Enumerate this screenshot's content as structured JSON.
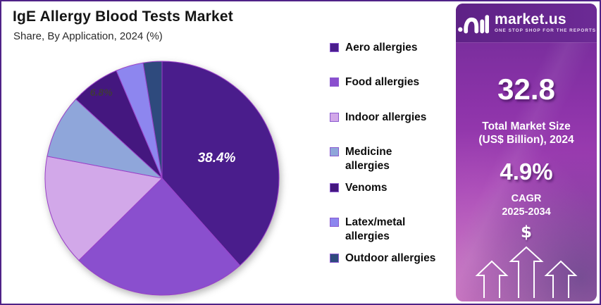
{
  "frame": {
    "border_color": "#4f2387",
    "background": "#ffffff"
  },
  "header": {
    "title": "IgE Allergy Blood Tests Market",
    "subtitle": "Share, By Application, 2024 (%)"
  },
  "chart_data": {
    "type": "pie",
    "title": "IgE Allergy Blood Tests Market",
    "subtitle": "Share, By Application, 2024 (%)",
    "unit": "%",
    "start_angle_clockwise_from_top_deg": 0,
    "stroke_color": "#9a41c8",
    "legend_position": "right",
    "slices": [
      {
        "label": "Aero allergies",
        "value": 38.4,
        "color": "#4a1d8c",
        "data_label": "38.4%",
        "data_label_color": "#ffffff",
        "data_label_size": 19,
        "label_r": 0.5
      },
      {
        "label": "Food allergies",
        "value": 24.2,
        "color": "#8a4fce"
      },
      {
        "label": "Indoor allergies",
        "value": 15.4,
        "color": "#d2a8e9"
      },
      {
        "label": "Medicine allergies",
        "value": 8.8,
        "color": "#8fa6da"
      },
      {
        "label": "Venoms",
        "value": 6.8,
        "color": "#44177f",
        "data_label": "6.8%",
        "data_label_color": "#3f3a3a",
        "data_label_size": 14,
        "label_r": 0.9
      },
      {
        "label": "Latex/metal allergies",
        "value": 3.8,
        "color": "#8d86ef"
      },
      {
        "label": "Outdoor allergies",
        "value": 2.6,
        "color": "#2e4a7d"
      }
    ]
  },
  "legend": {
    "items": [
      {
        "label": "Aero allergies",
        "lines": [
          "Aero allergies"
        ],
        "color": "#4a1d8c"
      },
      {
        "label": "Food allergies",
        "lines": [
          "Food allergies"
        ],
        "color": "#8a4fce"
      },
      {
        "label": "Indoor allergies",
        "lines": [
          "Indoor allergies"
        ],
        "color": "#d2a8e9"
      },
      {
        "label": "Medicine allergies",
        "lines": [
          "Medicine",
          "allergies"
        ],
        "color": "#8fa6da"
      },
      {
        "label": "Venoms",
        "lines": [
          "Venoms"
        ],
        "color": "#44177f"
      },
      {
        "label": "Latex/metal allergies",
        "lines": [
          "Latex/metal",
          "allergies"
        ],
        "color": "#8d86ef"
      },
      {
        "label": "Outdoor allergies",
        "lines": [
          "Outdoor allergies"
        ],
        "color": "#2e4a7d"
      }
    ]
  },
  "sidebar": {
    "brand": {
      "name": "market.us",
      "tagline": "ONE STOP SHOP FOR THE REPORTS"
    },
    "market_size": {
      "value": "32.8",
      "label_line1": "Total Market Size",
      "label_line2": "(US$ Billion), 2024"
    },
    "cagr": {
      "value": "4.9%",
      "label_line1": "CAGR",
      "label_line2": "2025-2034"
    },
    "currency_symbol": "$"
  }
}
